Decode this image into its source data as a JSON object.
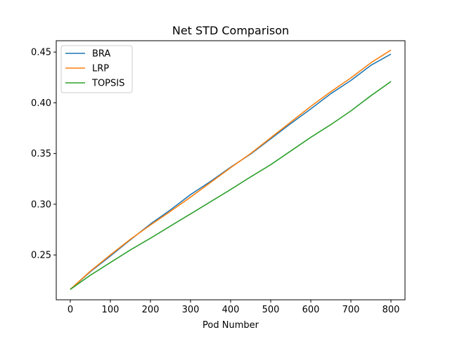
{
  "chart_data": {
    "type": "line",
    "title": "Net STD Comparison",
    "xlabel": "Pod Number",
    "ylabel": "",
    "xlim": [
      -35,
      835
    ],
    "ylim": [
      0.2058,
      0.4612
    ],
    "xticks": [
      0,
      100,
      200,
      300,
      400,
      500,
      600,
      700,
      800
    ],
    "yticks": [
      0.25,
      0.3,
      0.35,
      0.4,
      0.45
    ],
    "ytick_labels": [
      "0.25",
      "0.30",
      "0.35",
      "0.40",
      "0.45"
    ],
    "grid": false,
    "legend_position": "upper-left",
    "series": [
      {
        "name": "BRA",
        "color": "#1f77b4",
        "x": [
          0,
          50,
          100,
          150,
          200,
          250,
          300,
          350,
          400,
          450,
          500,
          550,
          600,
          650,
          700,
          750,
          800
        ],
        "y": [
          0.216,
          0.2335,
          0.249,
          0.265,
          0.2805,
          0.2945,
          0.3095,
          0.3225,
          0.3365,
          0.3495,
          0.3645,
          0.3795,
          0.394,
          0.409,
          0.422,
          0.437,
          0.448
        ]
      },
      {
        "name": "LRP",
        "color": "#ff7f0e",
        "x": [
          0,
          50,
          100,
          150,
          200,
          250,
          300,
          350,
          400,
          450,
          500,
          550,
          600,
          650,
          700,
          750,
          800
        ],
        "y": [
          0.216,
          0.234,
          0.25,
          0.2655,
          0.2795,
          0.293,
          0.307,
          0.3215,
          0.336,
          0.35,
          0.3655,
          0.381,
          0.3965,
          0.411,
          0.4245,
          0.4395,
          0.452
        ]
      },
      {
        "name": "TOPSIS",
        "color": "#2ca02c",
        "x": [
          0,
          50,
          100,
          150,
          200,
          250,
          300,
          350,
          400,
          450,
          500,
          550,
          600,
          650,
          700,
          750,
          800
        ],
        "y": [
          0.216,
          0.23,
          0.2425,
          0.255,
          0.2665,
          0.2785,
          0.2905,
          0.3025,
          0.3145,
          0.327,
          0.339,
          0.3525,
          0.366,
          0.3785,
          0.392,
          0.407,
          0.421
        ]
      }
    ]
  }
}
